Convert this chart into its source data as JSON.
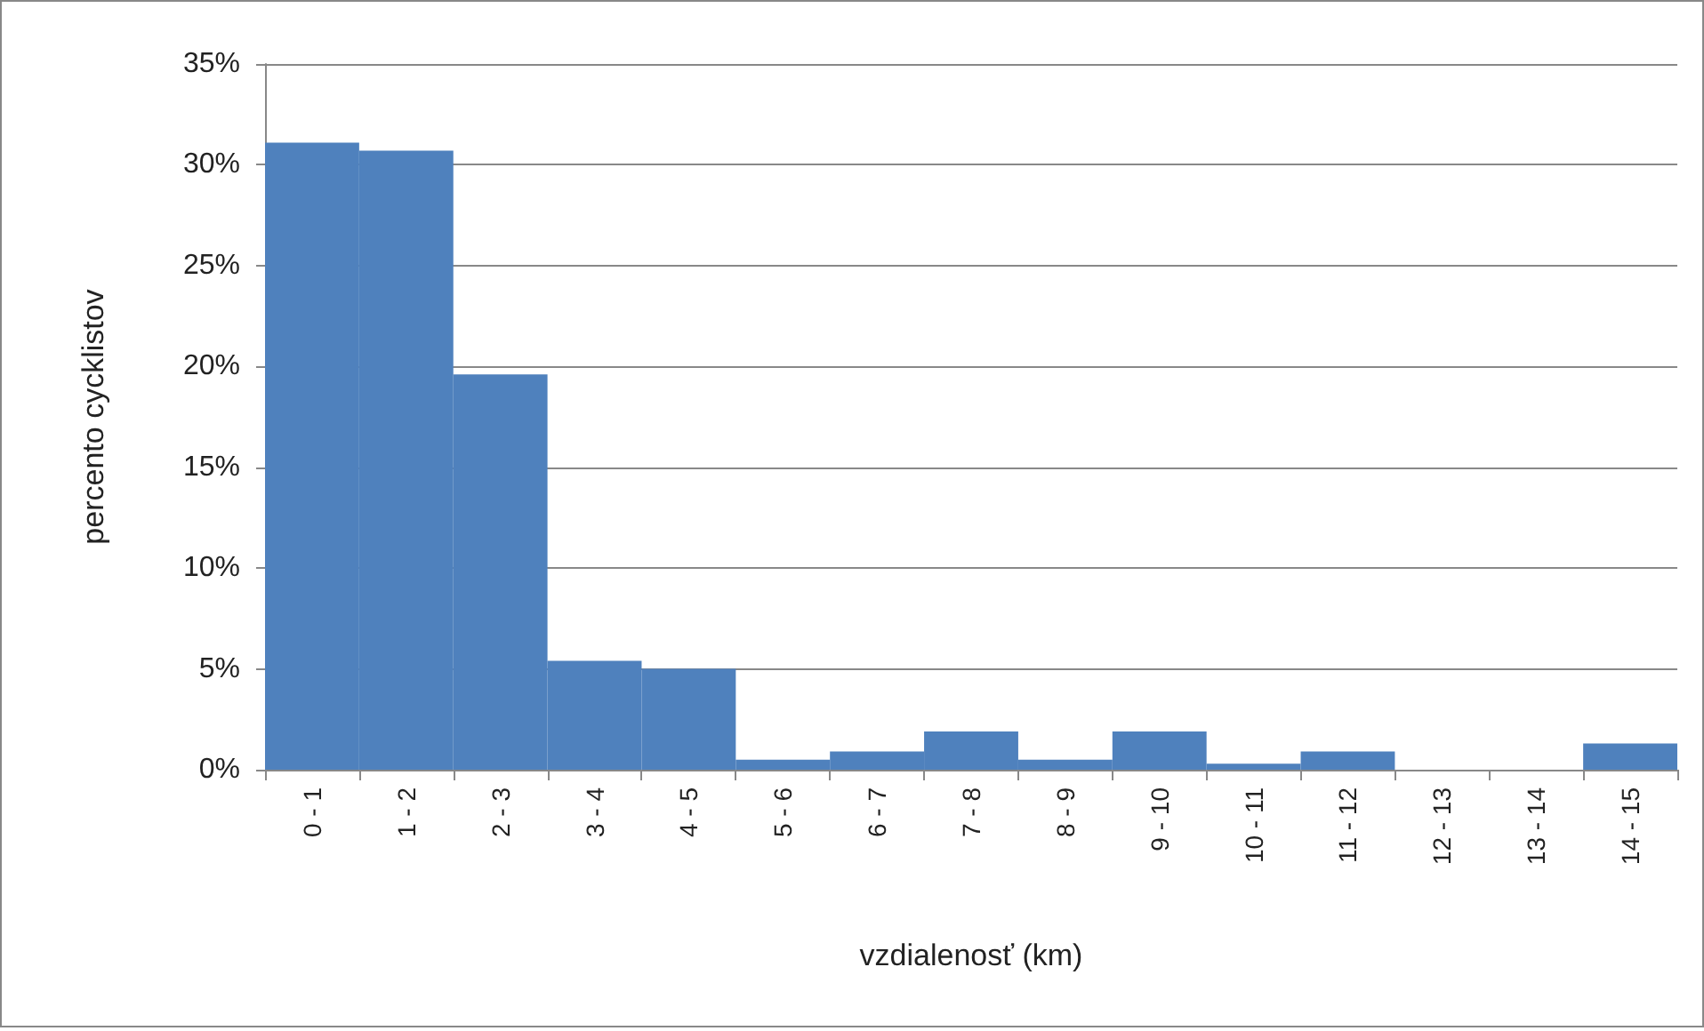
{
  "chart_data": {
    "type": "bar",
    "xlabel": "vzdialenosť (km)",
    "ylabel": "percento cycklistov",
    "categories": [
      "0 - 1",
      "1 - 2",
      "2 - 3",
      "3 - 4",
      "4 - 5",
      "5 - 6",
      "6 - 7",
      "7 - 8",
      "8 - 9",
      "9 - 10",
      "10 - 11",
      "11 - 12",
      "12 - 13",
      "13 - 14",
      "14 - 15"
    ],
    "values": [
      31.1,
      30.7,
      19.6,
      5.4,
      5.0,
      0.5,
      0.9,
      1.9,
      0.5,
      1.9,
      0.3,
      0.9,
      0,
      0,
      1.3
    ],
    "color": "#4f81bd",
    "ylim": [
      0,
      35
    ],
    "yticks": [
      {
        "value": 0,
        "label": "0%"
      },
      {
        "value": 5,
        "label": "5%"
      },
      {
        "value": 10,
        "label": "10%"
      },
      {
        "value": 15,
        "label": "15%"
      },
      {
        "value": 20,
        "label": "20%"
      },
      {
        "value": 25,
        "label": "25%"
      },
      {
        "value": 30,
        "label": "30%"
      },
      {
        "value": 35,
        "label": "35%"
      }
    ],
    "grid": "y"
  }
}
